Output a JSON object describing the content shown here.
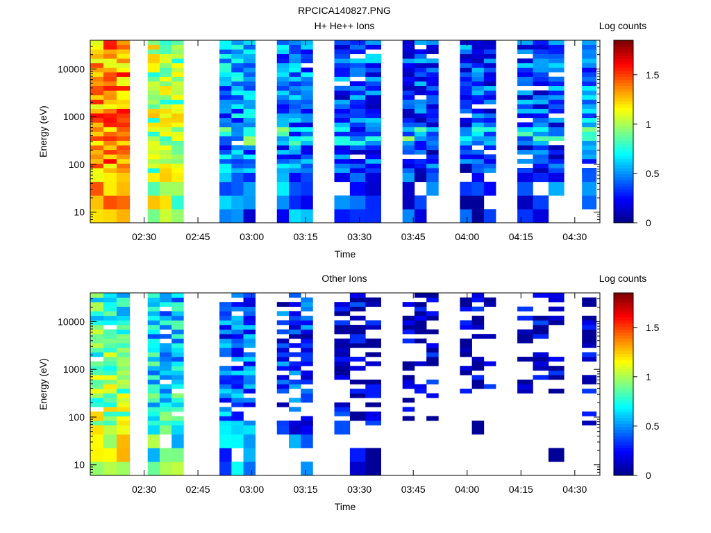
{
  "figure_title": "RPCICA140827.PNG",
  "colormap": [
    "#00008f",
    "#0000ff",
    "#0080ff",
    "#00ffff",
    "#80ff80",
    "#ffff00",
    "#ff8000",
    "#ff0000",
    "#800000"
  ],
  "chart_data": [
    {
      "type": "heatmap",
      "title": "H+ He++ Ions",
      "xlabel": "Time",
      "ylabel": "Energy (eV)",
      "x_ticks": [
        "02:30",
        "02:45",
        "03:00",
        "03:15",
        "03:30",
        "03:45",
        "04:00",
        "04:15",
        "04:30"
      ],
      "y_scale": "log",
      "y_ticks": [
        "10",
        "100",
        "1000",
        "10000"
      ],
      "ylim": [
        6,
        40000
      ],
      "colorbar": {
        "label": "Log counts",
        "ticks": [
          "0",
          "0.5",
          "1",
          "1.5"
        ],
        "range": [
          0,
          1.85
        ]
      },
      "seed": 11,
      "columns": [
        {
          "start": "02:15",
          "end": "02:26",
          "sub": 3,
          "base": 1.35,
          "lowBoost": 0.0,
          "sparsity": 0.0
        },
        {
          "start": "02:31",
          "end": "02:41",
          "sub": 3,
          "base": 1.0,
          "lowBoost": 0.0,
          "sparsity": 0.0
        },
        {
          "start": "02:51",
          "end": "03:01",
          "sub": 3,
          "base": 0.55,
          "lowBoost": -0.15,
          "sparsity": 0.03
        },
        {
          "start": "03:07",
          "end": "03:17",
          "sub": 3,
          "base": 0.48,
          "lowBoost": -0.1,
          "sparsity": 0.05
        },
        {
          "start": "03:23",
          "end": "03:36",
          "sub": 3,
          "base": 0.4,
          "lowBoost": -0.15,
          "sparsity": 0.05
        },
        {
          "start": "03:42",
          "end": "03:52",
          "sub": 3,
          "base": 0.36,
          "lowBoost": -0.1,
          "sparsity": 0.08
        },
        {
          "start": "03:58",
          "end": "04:08",
          "sub": 3,
          "base": 0.36,
          "lowBoost": -0.1,
          "sparsity": 0.06
        },
        {
          "start": "04:14",
          "end": "04:27",
          "sub": 3,
          "base": 0.38,
          "lowBoost": -0.1,
          "sparsity": 0.08
        },
        {
          "start": "04:32",
          "end": "04:36",
          "sub": 1,
          "base": 0.45,
          "lowBoost": 0.0,
          "sparsity": 0.05
        }
      ]
    },
    {
      "type": "heatmap",
      "title": "Other Ions",
      "xlabel": "Time",
      "ylabel": "Energy (eV)",
      "x_ticks": [
        "02:30",
        "02:45",
        "03:00",
        "03:15",
        "03:30",
        "03:45",
        "04:00",
        "04:15",
        "04:30"
      ],
      "y_scale": "log",
      "y_ticks": [
        "10",
        "100",
        "1000",
        "10000"
      ],
      "ylim": [
        6,
        40000
      ],
      "colorbar": {
        "label": "Log counts",
        "ticks": [
          "0",
          "0.5",
          "1",
          "1.5"
        ],
        "range": [
          0,
          1.85
        ]
      },
      "seed": 29,
      "columns": [
        {
          "start": "02:15",
          "end": "02:26",
          "sub": 3,
          "base": 0.75,
          "lowBoost": 0.35,
          "sparsity": 0.02
        },
        {
          "start": "02:31",
          "end": "02:41",
          "sub": 3,
          "base": 0.55,
          "lowBoost": 0.25,
          "sparsity": 0.03
        },
        {
          "start": "02:51",
          "end": "03:01",
          "sub": 3,
          "base": 0.35,
          "lowBoost": 0.15,
          "sparsity": 0.1
        },
        {
          "start": "03:07",
          "end": "03:17",
          "sub": 3,
          "base": 0.28,
          "lowBoost": 0.05,
          "sparsity": 0.25
        },
        {
          "start": "03:23",
          "end": "03:36",
          "sub": 3,
          "base": 0.15,
          "lowBoost": 0.0,
          "sparsity": 0.4
        },
        {
          "start": "03:42",
          "end": "03:52",
          "sub": 3,
          "base": 0.1,
          "lowBoost": 0.0,
          "sparsity": 0.55
        },
        {
          "start": "03:58",
          "end": "04:08",
          "sub": 3,
          "base": 0.08,
          "lowBoost": 0.0,
          "sparsity": 0.6
        },
        {
          "start": "04:14",
          "end": "04:27",
          "sub": 3,
          "base": 0.1,
          "lowBoost": 0.0,
          "sparsity": 0.55
        },
        {
          "start": "04:32",
          "end": "04:36",
          "sub": 1,
          "base": 0.1,
          "lowBoost": 0.0,
          "sparsity": 0.5
        }
      ]
    }
  ]
}
